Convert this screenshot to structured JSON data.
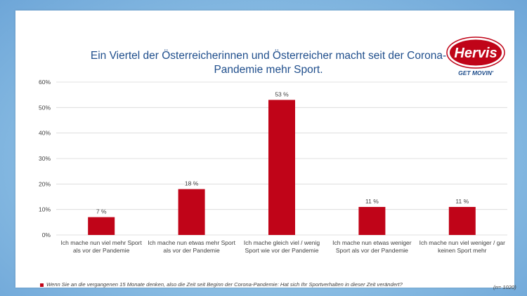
{
  "slide": {
    "title": "Ein Viertel der Österreicherinnen und Österreicher macht seit der Corona-Pandemie mehr Sport.",
    "logo": {
      "brand": "Hervis",
      "tagline": "GET MOVIN'"
    },
    "sample_note": "(n= 1020)"
  },
  "chart_data": {
    "type": "bar",
    "categories": [
      "Ich mache nun viel mehr Sport als vor der Pandemie",
      "Ich mache nun etwas mehr Sport als vor der Pandemie",
      "Ich mache gleich viel / wenig Sport wie vor der Pandemie",
      "Ich mache nun etwas weniger Sport als vor der Pandemie",
      "Ich mache nun viel weniger / gar keinen Sport mehr"
    ],
    "values": [
      7,
      18,
      53,
      11,
      11
    ],
    "value_labels": [
      "7 %",
      "18 %",
      "53 %",
      "11 %",
      "11 %"
    ],
    "yticks": [
      "0%",
      "10%",
      "20%",
      "30%",
      "40%",
      "50%",
      "60%"
    ],
    "ylim": [
      0,
      60
    ],
    "grid": true,
    "legend_position": "bottom",
    "series": [
      {
        "name": "Wenn Sie an die vergangenen 15 Monate denken, also die Zeit seit Beginn der Corona-Pandemie: Hat sich Ihr Sportverhalten in dieser Zeit verändert?"
      }
    ],
    "colors": {
      "bar": "#c00418",
      "grid": "#d9d9d9",
      "title": "#1f4e8c"
    }
  }
}
